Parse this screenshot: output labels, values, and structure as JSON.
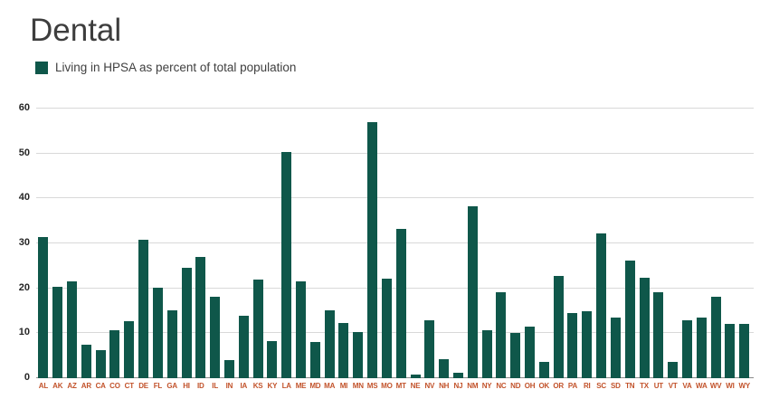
{
  "page": {
    "title": "Dental"
  },
  "legend": {
    "label": "Living in HPSA as percent of total population"
  },
  "colors": {
    "bar": "#0f574a",
    "grid": "#d9d9d9",
    "axis_line": "#8a8a8a",
    "x_label": "#c2532b",
    "y_label": "#262626",
    "title": "#3d3d3d",
    "background": "#ffffff"
  },
  "chart_data": {
    "type": "bar",
    "title": "Dental",
    "legend": [
      "Living in HPSA as percent of total population"
    ],
    "legend_position": "top-left",
    "xlabel": "",
    "ylabel": "",
    "ylim": [
      0,
      60
    ],
    "yticks": [
      0,
      10,
      20,
      30,
      40,
      50,
      60
    ],
    "grid": "horizontal",
    "bar_color": "#0f574a",
    "categories": [
      "AL",
      "AK",
      "AZ",
      "AR",
      "CA",
      "CO",
      "CT",
      "DE",
      "FL",
      "GA",
      "HI",
      "ID",
      "IL",
      "IN",
      "IA",
      "KS",
      "KY",
      "LA",
      "ME",
      "MD",
      "MA",
      "MI",
      "MN",
      "MS",
      "MO",
      "MT",
      "NE",
      "NV",
      "NH",
      "NJ",
      "NM",
      "NY",
      "NC",
      "ND",
      "OH",
      "OK",
      "OR",
      "PA",
      "RI",
      "SC",
      "SD",
      "TN",
      "TX",
      "UT",
      "VT",
      "VA",
      "WA",
      "WV",
      "WI",
      "WY"
    ],
    "values": [
      31.4,
      20.4,
      21.6,
      7.5,
      6.3,
      10.7,
      12.6,
      30.9,
      20.2,
      15.1,
      24.5,
      27.0,
      18.1,
      4.0,
      13.9,
      22.0,
      8.2,
      50.4,
      21.5,
      8.0,
      15.2,
      12.3,
      10.3,
      57.0,
      22.1,
      33.2,
      0.8,
      12.8,
      4.3,
      1.2,
      38.3,
      10.6,
      19.2,
      10.0,
      11.5,
      3.7,
      22.7,
      14.5,
      15.0,
      32.2,
      13.4,
      26.1,
      22.4,
      19.2,
      3.7,
      12.8,
      13.4,
      18.1,
      12.0,
      12.1
    ]
  }
}
